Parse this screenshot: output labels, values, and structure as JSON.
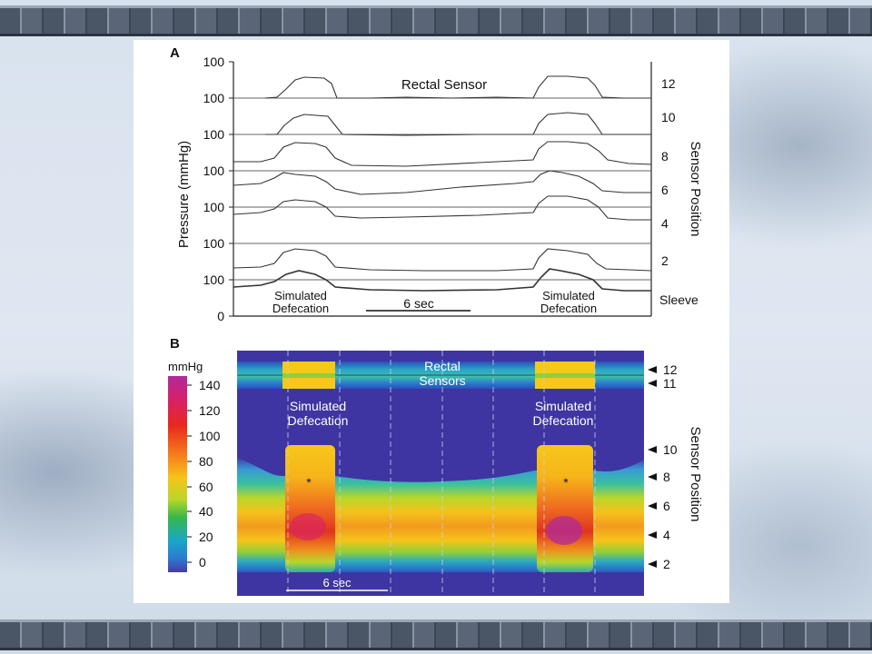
{
  "panel_a": {
    "letter": "A",
    "y_axis_label": "Pressure (mmHg)",
    "y_tick_labels": [
      "100",
      "100",
      "100",
      "100",
      "100",
      "100",
      "100",
      "0"
    ],
    "right_axis_label": "Sensor Position",
    "sensor_labels": [
      "12",
      "10",
      "8",
      "6",
      "4",
      "2",
      "Sleeve"
    ],
    "rectal_sensor_label": "Rectal Sensor",
    "event_label_1_line1": "Simulated",
    "event_label_1_line2": "Defecation",
    "event_label_2_line1": "Simulated",
    "event_label_2_line2": "Defecation",
    "scalebar_label": "6 sec"
  },
  "panel_b": {
    "letter": "B",
    "colorbar_title": "mmHg",
    "colorbar_ticks": [
      "140",
      "120",
      "100",
      "80",
      "60",
      "40",
      "20",
      "0"
    ],
    "rectal_sensors_line1": "Rectal",
    "rectal_sensors_line2": "Sensors",
    "event_label_1_line1": "Simulated",
    "event_label_1_line2": "Defecation",
    "event_label_2_line1": "Simulated",
    "event_label_2_line2": "Defecation",
    "sensor_tick_labels": [
      "12",
      "11",
      "10",
      "8",
      "6",
      "4",
      "2"
    ],
    "right_axis_label": "Sensor Position",
    "asterisk": "*",
    "scalebar_label": "6 sec"
  },
  "chart_data": [
    {
      "type": "line",
      "ylabel": "Pressure (mmHg)",
      "series": [
        {
          "name": "12",
          "shape": "baseline with plateau ~30 mmHg above during each simulated defecation"
        },
        {
          "name": "10",
          "shape": "baseline with plateau ~30 mmHg above during each simulated defecation"
        },
        {
          "name": "8",
          "shape": "elevated plateau during events, ~30 mmHg"
        },
        {
          "name": "6",
          "shape": "elevated plateau during events, slowly rising baseline between"
        },
        {
          "name": "4",
          "shape": "elevated plateau during events"
        },
        {
          "name": "2",
          "shape": "elevated plateau during events"
        },
        {
          "name": "Sleeve",
          "shape": "elevated plateau during events"
        }
      ],
      "events": [
        "Simulated Defecation",
        "Simulated Defecation"
      ],
      "scalebar": "6 sec"
    },
    {
      "type": "heatmap",
      "colorbar": {
        "label": "mmHg",
        "ticks": [
          140,
          120,
          100,
          80,
          60,
          40,
          20,
          0
        ]
      },
      "y_positions": [
        12,
        11,
        10,
        8,
        6,
        4,
        2
      ],
      "events": [
        "Simulated Defecation",
        "Simulated Defecation"
      ],
      "scalebar": "6 sec"
    }
  ]
}
